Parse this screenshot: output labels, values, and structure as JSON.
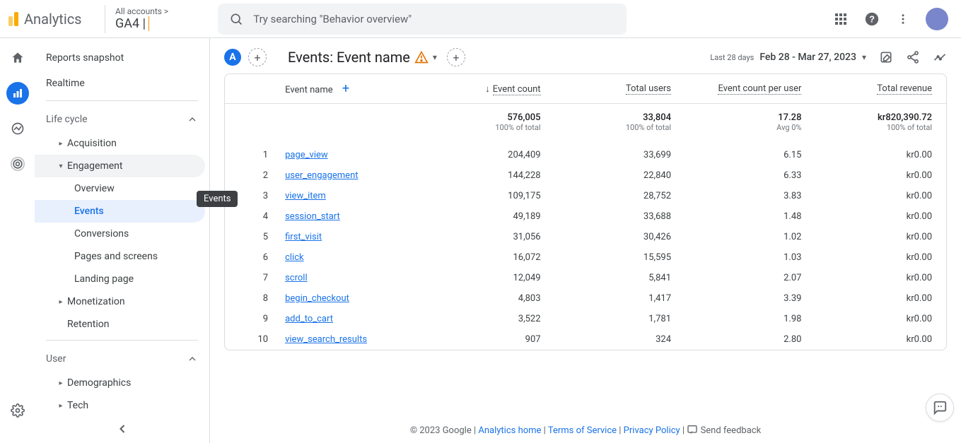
{
  "header": {
    "logo_text": "Analytics",
    "account_path": "All accounts >",
    "account_current": "GA4 |",
    "search_placeholder": "Try searching \"Behavior overview\""
  },
  "sidebar": {
    "tooltip": "Events",
    "top": [
      {
        "label": "Reports snapshot"
      },
      {
        "label": "Realtime"
      }
    ],
    "groups": [
      {
        "label": "Life cycle",
        "open": true,
        "items": [
          {
            "label": "Acquisition",
            "has_children": true,
            "expanded": false
          },
          {
            "label": "Engagement",
            "has_children": true,
            "expanded": true,
            "children": [
              {
                "label": "Overview"
              },
              {
                "label": "Events",
                "active": true
              },
              {
                "label": "Conversions"
              },
              {
                "label": "Pages and screens"
              },
              {
                "label": "Landing page"
              }
            ]
          },
          {
            "label": "Monetization",
            "has_children": true,
            "expanded": false
          },
          {
            "label": "Retention",
            "has_children": false
          }
        ]
      },
      {
        "label": "User",
        "open": true,
        "items": [
          {
            "label": "Demographics",
            "has_children": true,
            "expanded": false
          },
          {
            "label": "Tech",
            "has_children": true,
            "expanded": false
          }
        ]
      }
    ]
  },
  "page": {
    "segment_letter": "A",
    "title": "Events: Event name",
    "date_label": "Last 28 days",
    "date_value": "Feb 28 - Mar 27, 2023"
  },
  "table": {
    "columns": [
      "Event name",
      "Event count",
      "Total users",
      "Event count per user",
      "Total revenue"
    ],
    "totals": {
      "event_count": "576,005",
      "event_count_sub": "100% of total",
      "total_users": "33,804",
      "total_users_sub": "100% of total",
      "per_user": "17.28",
      "per_user_sub": "Avg 0%",
      "revenue": "kr820,390.72",
      "revenue_sub": "100% of total"
    },
    "rows": [
      {
        "n": 1,
        "name": "page_view",
        "count": "204,409",
        "users": "33,699",
        "per": "6.15",
        "rev": "kr0.00"
      },
      {
        "n": 2,
        "name": "user_engagement",
        "count": "144,228",
        "users": "22,840",
        "per": "6.33",
        "rev": "kr0.00"
      },
      {
        "n": 3,
        "name": "view_item",
        "count": "109,175",
        "users": "28,752",
        "per": "3.83",
        "rev": "kr0.00"
      },
      {
        "n": 4,
        "name": "session_start",
        "count": "49,189",
        "users": "33,688",
        "per": "1.48",
        "rev": "kr0.00"
      },
      {
        "n": 5,
        "name": "first_visit",
        "count": "31,056",
        "users": "30,426",
        "per": "1.02",
        "rev": "kr0.00"
      },
      {
        "n": 6,
        "name": "click",
        "count": "16,072",
        "users": "15,595",
        "per": "1.03",
        "rev": "kr0.00"
      },
      {
        "n": 7,
        "name": "scroll",
        "count": "12,049",
        "users": "5,841",
        "per": "2.07",
        "rev": "kr0.00"
      },
      {
        "n": 8,
        "name": "begin_checkout",
        "count": "4,803",
        "users": "1,417",
        "per": "3.39",
        "rev": "kr0.00"
      },
      {
        "n": 9,
        "name": "add_to_cart",
        "count": "3,522",
        "users": "1,781",
        "per": "1.98",
        "rev": "kr0.00"
      },
      {
        "n": 10,
        "name": "view_search_results",
        "count": "907",
        "users": "324",
        "per": "2.80",
        "rev": "kr0.00"
      }
    ]
  },
  "footer": {
    "copyright": "© 2023 Google",
    "links": [
      "Analytics home",
      "Terms of Service",
      "Privacy Policy"
    ],
    "feedback": "Send feedback"
  }
}
